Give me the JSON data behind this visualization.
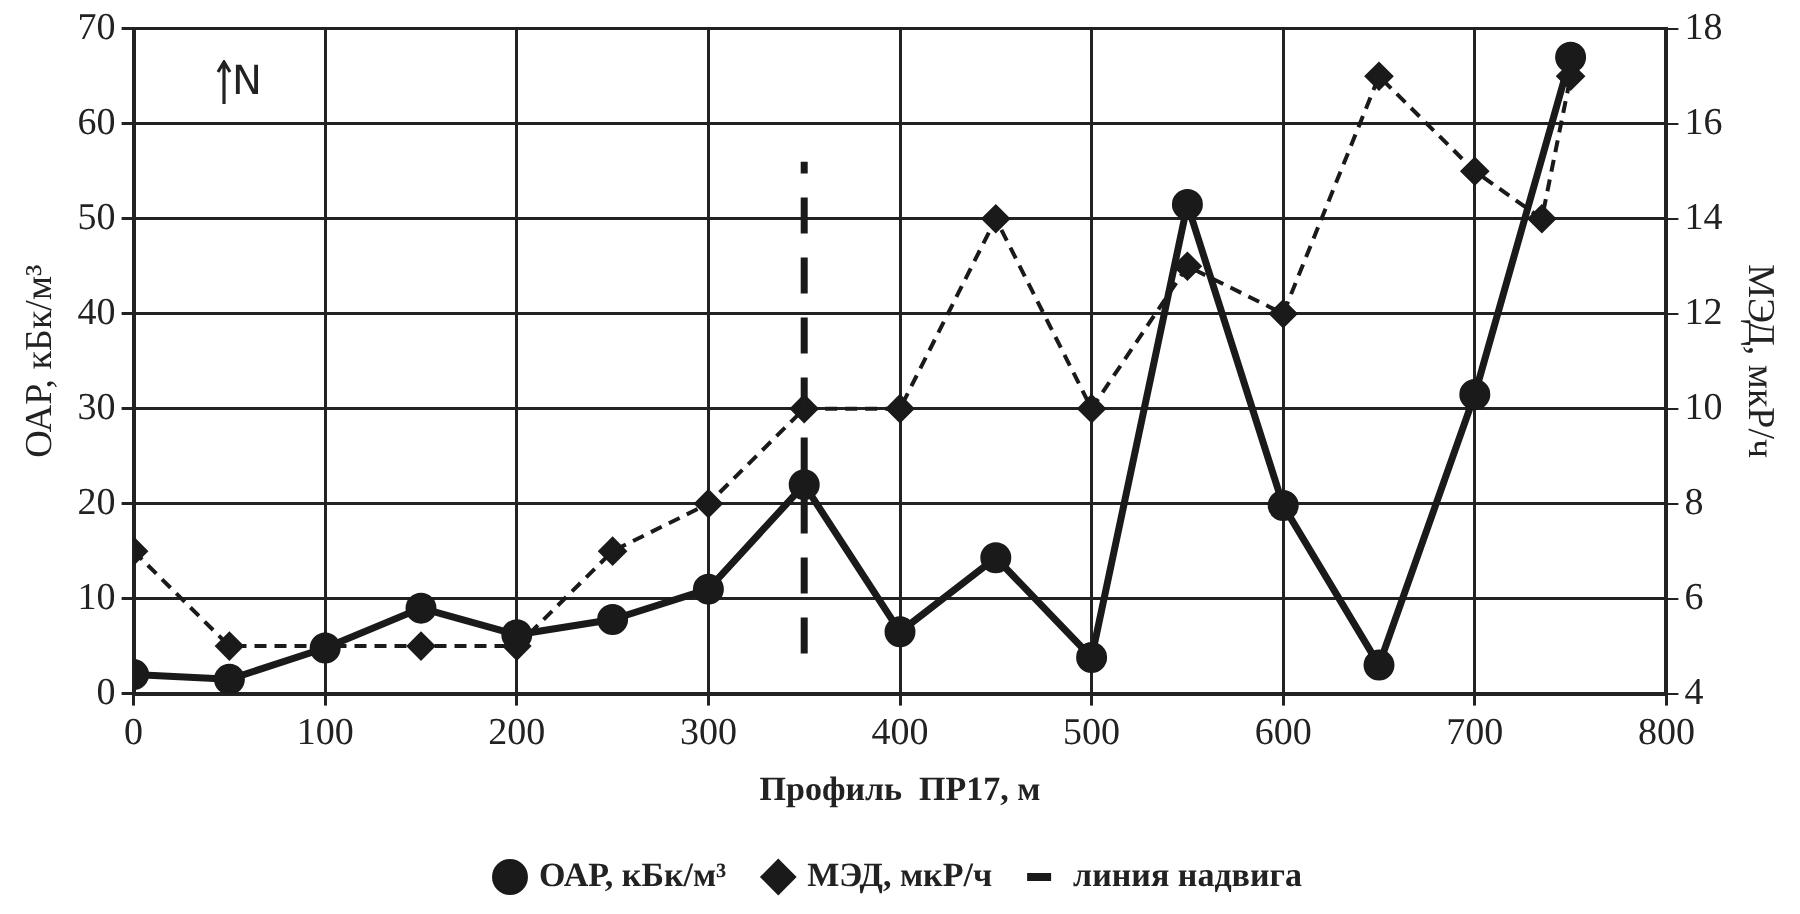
{
  "chart_data": {
    "type": "line",
    "xlabel": "Профиль  ПР17, м",
    "ylabel": "ОАР, кБк/м³",
    "y2label": "МЭД, мкР/ч",
    "x": [
      0,
      50,
      100,
      150,
      200,
      250,
      300,
      350,
      400,
      450,
      500,
      550,
      600,
      650,
      700,
      750
    ],
    "series": [
      {
        "name": "ОАР, кБк/м³",
        "color": "#1a1a1a",
        "marker": "circle",
        "line_style": "solid",
        "values": [
          2,
          1.5,
          4.8,
          9,
          6.2,
          7.8,
          11,
          22,
          6.5,
          14.3,
          3.8,
          51.5,
          19.8,
          3,
          31.5,
          67
        ]
      },
      {
        "name": "МЭД, мкР/ч",
        "color": "#1a1a1a",
        "marker": "diamond",
        "line_style": "dashed",
        "axis": "y2",
        "x": [
          0,
          50,
          100,
          150,
          200,
          250,
          300,
          350,
          400,
          450,
          500,
          550,
          600,
          650,
          700,
          735,
          750
        ],
        "values": [
          7,
          5,
          5,
          5,
          5,
          7,
          8,
          10,
          10,
          14,
          10,
          13,
          12,
          17,
          15,
          14,
          17
        ]
      }
    ],
    "xlim": [
      0,
      800
    ],
    "xticks": [
      0,
      100,
      200,
      300,
      400,
      500,
      600,
      700,
      800
    ],
    "ylim": [
      0,
      70
    ],
    "yticks": [
      0,
      10,
      20,
      30,
      40,
      50,
      60,
      70
    ],
    "y2lim": [
      4,
      18
    ],
    "y2ticks": [
      4,
      6,
      8,
      10,
      12,
      14,
      16,
      18
    ],
    "ref_lines": [
      {
        "axis": "x",
        "value": 350,
        "label": "линия надвига",
        "color": "#1a1a1a",
        "line_style": "dashed"
      }
    ],
    "annotations": [
      "N"
    ],
    "grid": true,
    "legend": "bottom"
  }
}
